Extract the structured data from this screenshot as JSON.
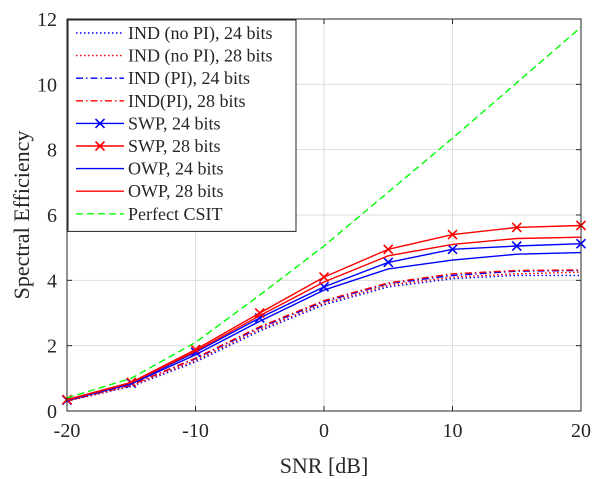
{
  "chart_data": {
    "type": "line",
    "xlabel": "SNR [dB]",
    "ylabel": "Spectral Efficiency",
    "xlim": [
      -20,
      20
    ],
    "ylim": [
      0,
      12
    ],
    "xticks": [
      -20,
      -10,
      0,
      10,
      20
    ],
    "yticks": [
      0,
      2,
      4,
      6,
      8,
      10,
      12
    ],
    "grid": true,
    "legend_position": "top-left",
    "x": [
      -20,
      -15,
      -10,
      -5,
      0,
      5,
      10,
      15,
      20
    ],
    "series": [
      {
        "name": "IND (no PI), 24 bits",
        "color": "#0000ff",
        "style": "dotted",
        "marker": "none",
        "values": [
          0.3,
          0.75,
          1.5,
          2.45,
          3.25,
          3.8,
          4.05,
          4.15,
          4.15
        ]
      },
      {
        "name": "IND (no PI), 28 bits",
        "color": "#ff0000",
        "style": "dotted",
        "marker": "none",
        "values": [
          0.3,
          0.77,
          1.55,
          2.5,
          3.3,
          3.85,
          4.1,
          4.2,
          4.25
        ]
      },
      {
        "name": "IND (PI), 24 bits",
        "color": "#0000ff",
        "style": "dashdot",
        "marker": "none",
        "values": [
          0.31,
          0.8,
          1.6,
          2.55,
          3.35,
          3.9,
          4.15,
          4.28,
          4.3
        ]
      },
      {
        "name": "IND(PI), 28 bits",
        "color": "#ff0000",
        "style": "dashdot",
        "marker": "none",
        "values": [
          0.31,
          0.8,
          1.62,
          2.58,
          3.38,
          3.92,
          4.2,
          4.3,
          4.32
        ]
      },
      {
        "name": "SWP, 24 bits",
        "color": "#0000ff",
        "style": "solid",
        "marker": "x",
        "values": [
          0.33,
          0.85,
          1.8,
          2.85,
          3.8,
          4.55,
          4.95,
          5.05,
          5.12
        ]
      },
      {
        "name": "SWP, 28 bits",
        "color": "#ff0000",
        "style": "solid",
        "marker": "x",
        "values": [
          0.35,
          0.88,
          1.88,
          3.0,
          4.1,
          4.95,
          5.4,
          5.62,
          5.68
        ]
      },
      {
        "name": "OWP, 24 bits",
        "color": "#0000ff",
        "style": "solid",
        "marker": "none",
        "values": [
          0.32,
          0.83,
          1.72,
          2.75,
          3.7,
          4.35,
          4.62,
          4.8,
          4.85
        ]
      },
      {
        "name": "OWP, 28 bits",
        "color": "#ff0000",
        "style": "solid",
        "marker": "none",
        "values": [
          0.34,
          0.87,
          1.83,
          2.92,
          3.95,
          4.75,
          5.1,
          5.28,
          5.32
        ]
      },
      {
        "name": "Perfect CSIT",
        "color": "#00ff00",
        "style": "dashed",
        "marker": "none",
        "values": [
          0.4,
          1.0,
          2.1,
          3.55,
          5.05,
          6.7,
          8.35,
          10.05,
          11.75
        ]
      }
    ]
  }
}
